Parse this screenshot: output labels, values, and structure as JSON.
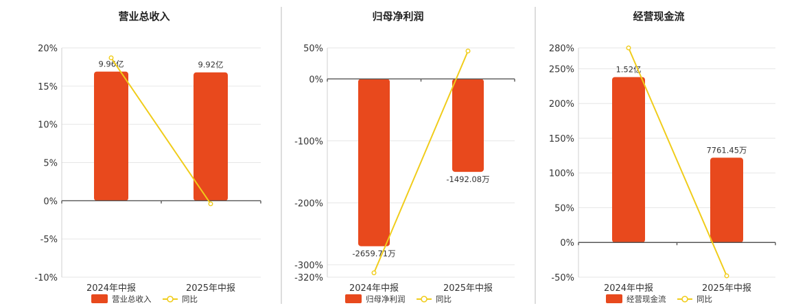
{
  "colors": {
    "bar": "#e8491d",
    "line": "#f0cc1a"
  },
  "chart_data": [
    {
      "type": "bar",
      "title": "营业总收入",
      "categories": [
        "2024年中报",
        "2025年中报"
      ],
      "ylim": [
        -10,
        20
      ],
      "yticks": [
        {
          "value": -10,
          "label": "-10%"
        },
        {
          "value": -5,
          "label": "-5%"
        },
        {
          "value": 0,
          "label": "0%"
        },
        {
          "value": 5,
          "label": "5%"
        },
        {
          "value": 10,
          "label": "10%"
        },
        {
          "value": 15,
          "label": "15%"
        },
        {
          "value": 20,
          "label": "20%"
        }
      ],
      "bar_series": {
        "name": "营业总收入",
        "values": [
          16.9,
          16.8
        ],
        "labels": [
          "9.96亿",
          "9.92亿"
        ]
      },
      "line_series": {
        "name": "同比",
        "values": [
          18.7,
          -0.4
        ]
      },
      "legend": [
        "营业总收入",
        "同比"
      ]
    },
    {
      "type": "bar",
      "title": "归母净利润",
      "categories": [
        "2024年中报",
        "2025年中报"
      ],
      "ylim": [
        -320,
        50
      ],
      "yticks": [
        {
          "value": -320,
          "label": "-320%"
        },
        {
          "value": -300,
          "label": "-300%"
        },
        {
          "value": -200,
          "label": "-200%"
        },
        {
          "value": -100,
          "label": "-100%"
        },
        {
          "value": 0,
          "label": "0%"
        },
        {
          "value": 50,
          "label": "50%"
        }
      ],
      "bar_series": {
        "name": "归母净利润",
        "values": [
          -270,
          -150
        ],
        "labels": [
          "-2659.71万",
          "-1492.08万"
        ]
      },
      "line_series": {
        "name": "同比",
        "values": [
          -313,
          45
        ]
      },
      "legend": [
        "归母净利润",
        "同比"
      ]
    },
    {
      "type": "bar",
      "title": "经营现金流",
      "categories": [
        "2024年中报",
        "2025年中报"
      ],
      "ylim": [
        -50,
        280
      ],
      "yticks": [
        {
          "value": -50,
          "label": "-50%"
        },
        {
          "value": 0,
          "label": "0%"
        },
        {
          "value": 50,
          "label": "50%"
        },
        {
          "value": 100,
          "label": "100%"
        },
        {
          "value": 150,
          "label": "150%"
        },
        {
          "value": 200,
          "label": "200%"
        },
        {
          "value": 250,
          "label": "250%"
        },
        {
          "value": 280,
          "label": "280%"
        }
      ],
      "bar_series": {
        "name": "经营现金流",
        "values": [
          238,
          122
        ],
        "labels": [
          "1.52亿",
          "7761.45万"
        ]
      },
      "line_series": {
        "name": "同比",
        "values": [
          280,
          -48
        ]
      },
      "legend": [
        "经营现金流",
        "同比"
      ]
    }
  ]
}
